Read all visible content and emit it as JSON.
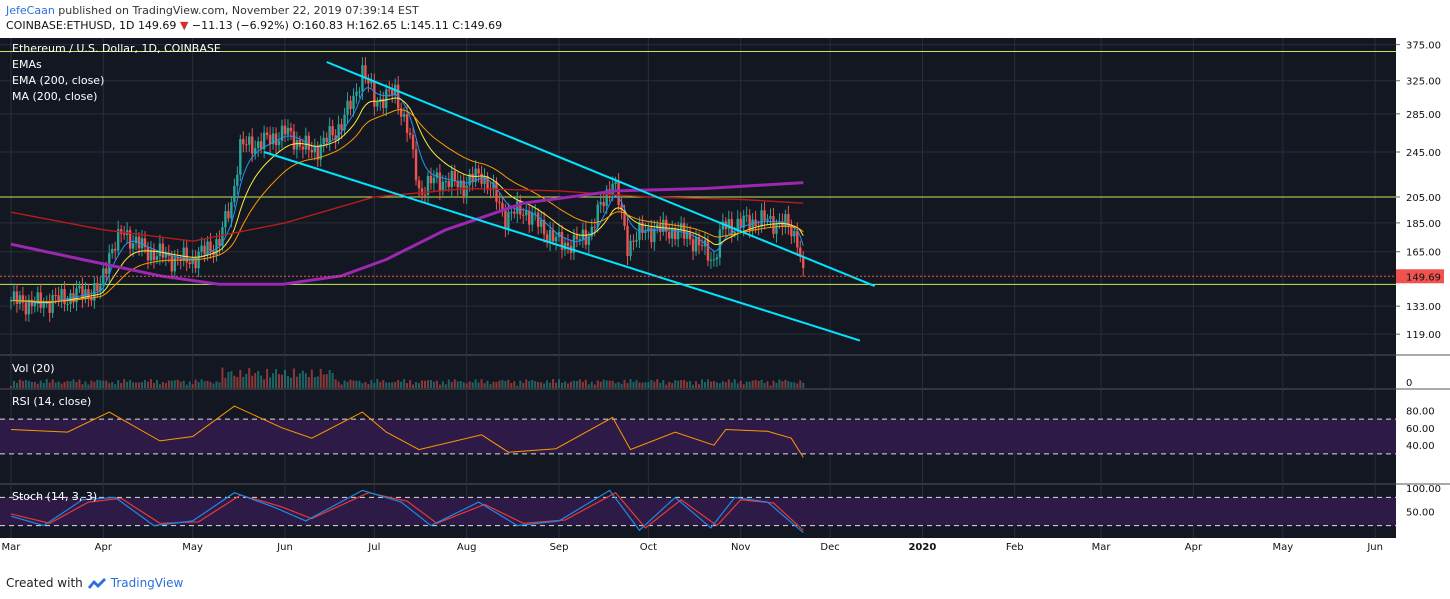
{
  "header": {
    "author": "JefeCaan",
    "published_text": "published on TradingView.com, November 22, 2019 07:39:14 EST",
    "symbol": "COINBASE:ETHUSD, 1D",
    "last": "149.69",
    "change_arrow": "▼",
    "change": "−11.13 (−6.92%)",
    "ohlc": "O:160.83 H:162.65 L:145.11 C:149.69"
  },
  "footer": {
    "created_with": "Created with",
    "brand": "TradingView"
  },
  "colors": {
    "background": "#131722",
    "grid": "#2a2e39",
    "up": "#26a69a",
    "down": "#ef5350",
    "channel": "#00e5ff",
    "ma200": "#9c27b0",
    "ema200": "#b71c1c",
    "rsi": "#ff9800",
    "stoch_k": "#1e88e5",
    "stoch_d": "#e53935",
    "horizontal_level": "#c6e85a",
    "last_price_label": "#ef5350",
    "osc_band": "#2e1a47"
  },
  "chart_data": {
    "type": "candlestick",
    "title": "Ethereum / U.S. Dollar, 1D, COINBASE",
    "indicators": [
      "EMAs",
      "EMA (200, close)",
      "MA (200, close)"
    ],
    "price_ticks": [
      "375.00",
      "325.00",
      "285.00",
      "245.00",
      "205.00",
      "185.00",
      "165.00",
      "133.00",
      "119.00"
    ],
    "price_axis": {
      "scale": "log",
      "range": [
        110,
        385
      ]
    },
    "last_price_label": "149.69",
    "x_ticks": [
      "Mar",
      "Apr",
      "May",
      "Jun",
      "Jul",
      "Aug",
      "Sep",
      "Oct",
      "Nov",
      "Dec",
      "2020",
      "Feb",
      "Mar",
      "Apr",
      "May",
      "Jun"
    ],
    "horizontal_levels": [
      365,
      205,
      145
    ],
    "close_path": [
      [
        "2019-03-01",
        136
      ],
      [
        "2019-03-10",
        134
      ],
      [
        "2019-03-20",
        138
      ],
      [
        "2019-03-31",
        142
      ],
      [
        "2019-04-03",
        165
      ],
      [
        "2019-04-08",
        178
      ],
      [
        "2019-04-15",
        166
      ],
      [
        "2019-04-25",
        160
      ],
      [
        "2019-05-01",
        160
      ],
      [
        "2019-05-10",
        172
      ],
      [
        "2019-05-14",
        200
      ],
      [
        "2019-05-17",
        250
      ],
      [
        "2019-05-25",
        255
      ],
      [
        "2019-06-01",
        265
      ],
      [
        "2019-06-10",
        245
      ],
      [
        "2019-06-18",
        265
      ],
      [
        "2019-06-24",
        300
      ],
      [
        "2019-06-27",
        340
      ],
      [
        "2019-07-01",
        300
      ],
      [
        "2019-07-08",
        310
      ],
      [
        "2019-07-12",
        270
      ],
      [
        "2019-07-16",
        210
      ],
      [
        "2019-07-22",
        220
      ],
      [
        "2019-07-31",
        215
      ],
      [
        "2019-08-06",
        225
      ],
      [
        "2019-08-14",
        190
      ],
      [
        "2019-08-20",
        195
      ],
      [
        "2019-08-31",
        172
      ],
      [
        "2019-09-06",
        170
      ],
      [
        "2019-09-12",
        180
      ],
      [
        "2019-09-19",
        220
      ],
      [
        "2019-09-24",
        170
      ],
      [
        "2019-09-30",
        180
      ],
      [
        "2019-10-08",
        180
      ],
      [
        "2019-10-15",
        175
      ],
      [
        "2019-10-23",
        160
      ],
      [
        "2019-10-26",
        182
      ],
      [
        "2019-11-07",
        187
      ],
      [
        "2019-11-15",
        185
      ],
      [
        "2019-11-20",
        175
      ],
      [
        "2019-11-22",
        149.69
      ]
    ],
    "ma200": [
      [
        "2019-03-01",
        170
      ],
      [
        "2019-03-25",
        160
      ],
      [
        "2019-04-20",
        150
      ],
      [
        "2019-05-10",
        145
      ],
      [
        "2019-05-31",
        145
      ],
      [
        "2019-06-20",
        150
      ],
      [
        "2019-07-05",
        160
      ],
      [
        "2019-07-25",
        180
      ],
      [
        "2019-08-20",
        200
      ],
      [
        "2019-09-20",
        210
      ],
      [
        "2019-10-20",
        212
      ],
      [
        "2019-11-22",
        217
      ]
    ],
    "ema200": [
      [
        "2019-03-01",
        193
      ],
      [
        "2019-04-01",
        180
      ],
      [
        "2019-05-01",
        172
      ],
      [
        "2019-06-01",
        185
      ],
      [
        "2019-07-01",
        205
      ],
      [
        "2019-08-01",
        212
      ],
      [
        "2019-09-01",
        210
      ],
      [
        "2019-10-01",
        205
      ],
      [
        "2019-11-01",
        203
      ],
      [
        "2019-11-22",
        200
      ]
    ],
    "channel_upper": [
      [
        "2019-06-15",
        350
      ],
      [
        "2019-12-16",
        144
      ]
    ],
    "channel_lower": [
      [
        "2019-05-25",
        245
      ],
      [
        "2019-12-11",
        116
      ]
    ],
    "volume": {
      "label": "Vol (20)",
      "tick": "0"
    },
    "rsi": {
      "label": "RSI (14, close)",
      "ticks": [
        "80.00",
        "60.00",
        "40.00"
      ],
      "band": [
        30,
        70
      ],
      "points": [
        [
          "2019-03-01",
          58
        ],
        [
          "2019-03-20",
          55
        ],
        [
          "2019-04-03",
          78
        ],
        [
          "2019-04-20",
          45
        ],
        [
          "2019-05-01",
          50
        ],
        [
          "2019-05-15",
          85
        ],
        [
          "2019-05-31",
          60
        ],
        [
          "2019-06-10",
          48
        ],
        [
          "2019-06-27",
          78
        ],
        [
          "2019-07-05",
          55
        ],
        [
          "2019-07-16",
          35
        ],
        [
          "2019-08-06",
          52
        ],
        [
          "2019-08-15",
          32
        ],
        [
          "2019-08-31",
          36
        ],
        [
          "2019-09-19",
          72
        ],
        [
          "2019-09-25",
          35
        ],
        [
          "2019-10-10",
          55
        ],
        [
          "2019-10-23",
          40
        ],
        [
          "2019-10-27",
          58
        ],
        [
          "2019-11-10",
          56
        ],
        [
          "2019-11-18",
          48
        ],
        [
          "2019-11-22",
          26
        ]
      ]
    },
    "stoch": {
      "label": "Stoch (14, 3, 3)",
      "ticks": [
        "100.00",
        "50.00"
      ],
      "band": [
        20,
        80
      ],
      "k": [
        [
          "2019-03-01",
          40
        ],
        [
          "2019-03-12",
          20
        ],
        [
          "2019-03-25",
          75
        ],
        [
          "2019-04-05",
          80
        ],
        [
          "2019-04-18",
          20
        ],
        [
          "2019-05-01",
          30
        ],
        [
          "2019-05-15",
          90
        ],
        [
          "2019-05-28",
          60
        ],
        [
          "2019-06-08",
          30
        ],
        [
          "2019-06-27",
          95
        ],
        [
          "2019-07-10",
          70
        ],
        [
          "2019-07-20",
          20
        ],
        [
          "2019-08-05",
          70
        ],
        [
          "2019-08-18",
          20
        ],
        [
          "2019-09-01",
          30
        ],
        [
          "2019-09-18",
          95
        ],
        [
          "2019-09-28",
          10
        ],
        [
          "2019-10-10",
          80
        ],
        [
          "2019-10-22",
          15
        ],
        [
          "2019-10-30",
          80
        ],
        [
          "2019-11-10",
          70
        ],
        [
          "2019-11-22",
          5
        ]
      ],
      "d": [
        [
          "2019-03-01",
          45
        ],
        [
          "2019-03-14",
          25
        ],
        [
          "2019-03-27",
          70
        ],
        [
          "2019-04-07",
          78
        ],
        [
          "2019-04-20",
          25
        ],
        [
          "2019-05-03",
          28
        ],
        [
          "2019-05-17",
          85
        ],
        [
          "2019-05-30",
          62
        ],
        [
          "2019-06-10",
          35
        ],
        [
          "2019-06-29",
          90
        ],
        [
          "2019-07-12",
          72
        ],
        [
          "2019-07-22",
          25
        ],
        [
          "2019-08-07",
          65
        ],
        [
          "2019-08-20",
          25
        ],
        [
          "2019-09-03",
          32
        ],
        [
          "2019-09-20",
          90
        ],
        [
          "2019-09-30",
          15
        ],
        [
          "2019-10-12",
          75
        ],
        [
          "2019-10-24",
          20
        ],
        [
          "2019-11-01",
          75
        ],
        [
          "2019-11-12",
          68
        ],
        [
          "2019-11-22",
          10
        ]
      ]
    }
  }
}
